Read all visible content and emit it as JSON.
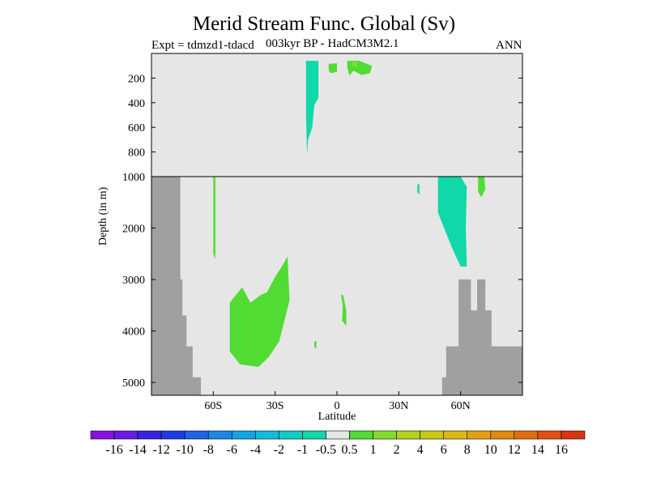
{
  "chart_data": {
    "type": "heatmap",
    "title": "Merid Stream Func. Global (Sv)",
    "subtitle_left": "Expt = tdmzd1-tdacd",
    "subtitle_center": "003kyr BP - HadCM3M2.1",
    "subtitle_right": "ANN",
    "xlabel": "Latitude",
    "ylabel": "Depth (in m)",
    "xlim": [
      -90,
      90
    ],
    "x_ticks": [
      {
        "value": -60,
        "label": "60S"
      },
      {
        "value": -30,
        "label": "30S"
      },
      {
        "value": 0,
        "label": "0"
      },
      {
        "value": 30,
        "label": "30N"
      },
      {
        "value": 60,
        "label": "60N"
      }
    ],
    "y_upper": {
      "range": [
        0,
        1000
      ],
      "ticks": [
        200,
        400,
        600,
        800
      ]
    },
    "y_lower": {
      "range": [
        1000,
        5250
      ],
      "ticks": [
        1000,
        2000,
        3000,
        4000,
        5000
      ]
    },
    "colorbar": {
      "labels": [
        "-16",
        "-14",
        "-12",
        "-10",
        "-8",
        "-6",
        "-4",
        "-2",
        "-1",
        "-0.5",
        "0.5",
        "1",
        "2",
        "4",
        "6",
        "8",
        "10",
        "12",
        "14",
        "16"
      ],
      "colors": [
        "#8a10e0",
        "#6a1ae6",
        "#3a22e0",
        "#1e3ce6",
        "#1e62e6",
        "#1a88e6",
        "#10a6e6",
        "#10bce0",
        "#10ccc8",
        "#10d8a8",
        "#e6e6e6",
        "#50dc32",
        "#84dc2a",
        "#b4d21a",
        "#ccc814",
        "#dcb814",
        "#e4a010",
        "#e48810",
        "#e46c10",
        "#e45010",
        "#dc3410"
      ]
    },
    "regions": [
      {
        "level": "-1 to -0.5",
        "color": "#10d8a8",
        "lat": [
          -15,
          -9
        ],
        "depth": [
          60,
          820
        ],
        "panel": "upper"
      },
      {
        "level": "0.5 to 1",
        "color": "#50dc32",
        "lat": [
          -4,
          0
        ],
        "depth": [
          80,
          160
        ],
        "panel": "upper"
      },
      {
        "level": "0.5 to 1",
        "color": "#50dc32",
        "lat": [
          5,
          17
        ],
        "depth": [
          60,
          180
        ],
        "panel": "upper"
      },
      {
        "level": "1 to 2",
        "color": "#84dc2a",
        "lat": [
          7,
          10
        ],
        "depth": [
          60,
          110
        ],
        "panel": "upper"
      },
      {
        "level": "-1 to -0.5",
        "color": "#10d8a8",
        "lat": [
          49,
          63
        ],
        "depth": [
          1000,
          2750
        ],
        "panel": "lower"
      },
      {
        "level": "0.5 to 1",
        "color": "#50dc32",
        "lat": [
          -52,
          -23
        ],
        "depth": [
          2550,
          4700
        ],
        "panel": "lower"
      },
      {
        "level": "0.5 to 1",
        "color": "#50dc32",
        "lat": [
          68,
          72
        ],
        "depth": [
          1000,
          1400
        ],
        "panel": "lower"
      },
      {
        "level": "0.5 to 1",
        "color": "#50dc32",
        "lat": [
          2,
          5
        ],
        "depth": [
          3300,
          3900
        ],
        "panel": "lower"
      },
      {
        "level": "0.5 to 1",
        "color": "#50dc32",
        "lat": [
          -60,
          -59
        ],
        "depth": [
          1000,
          2600
        ],
        "panel": "lower"
      }
    ],
    "grid": false,
    "legend": "bottom colorbar"
  },
  "icons": {
    "topography": "grey-land-mask"
  },
  "colors": {
    "background_field": "#e6e6e6",
    "land": "#a0a0a0",
    "frame": "#000000"
  }
}
